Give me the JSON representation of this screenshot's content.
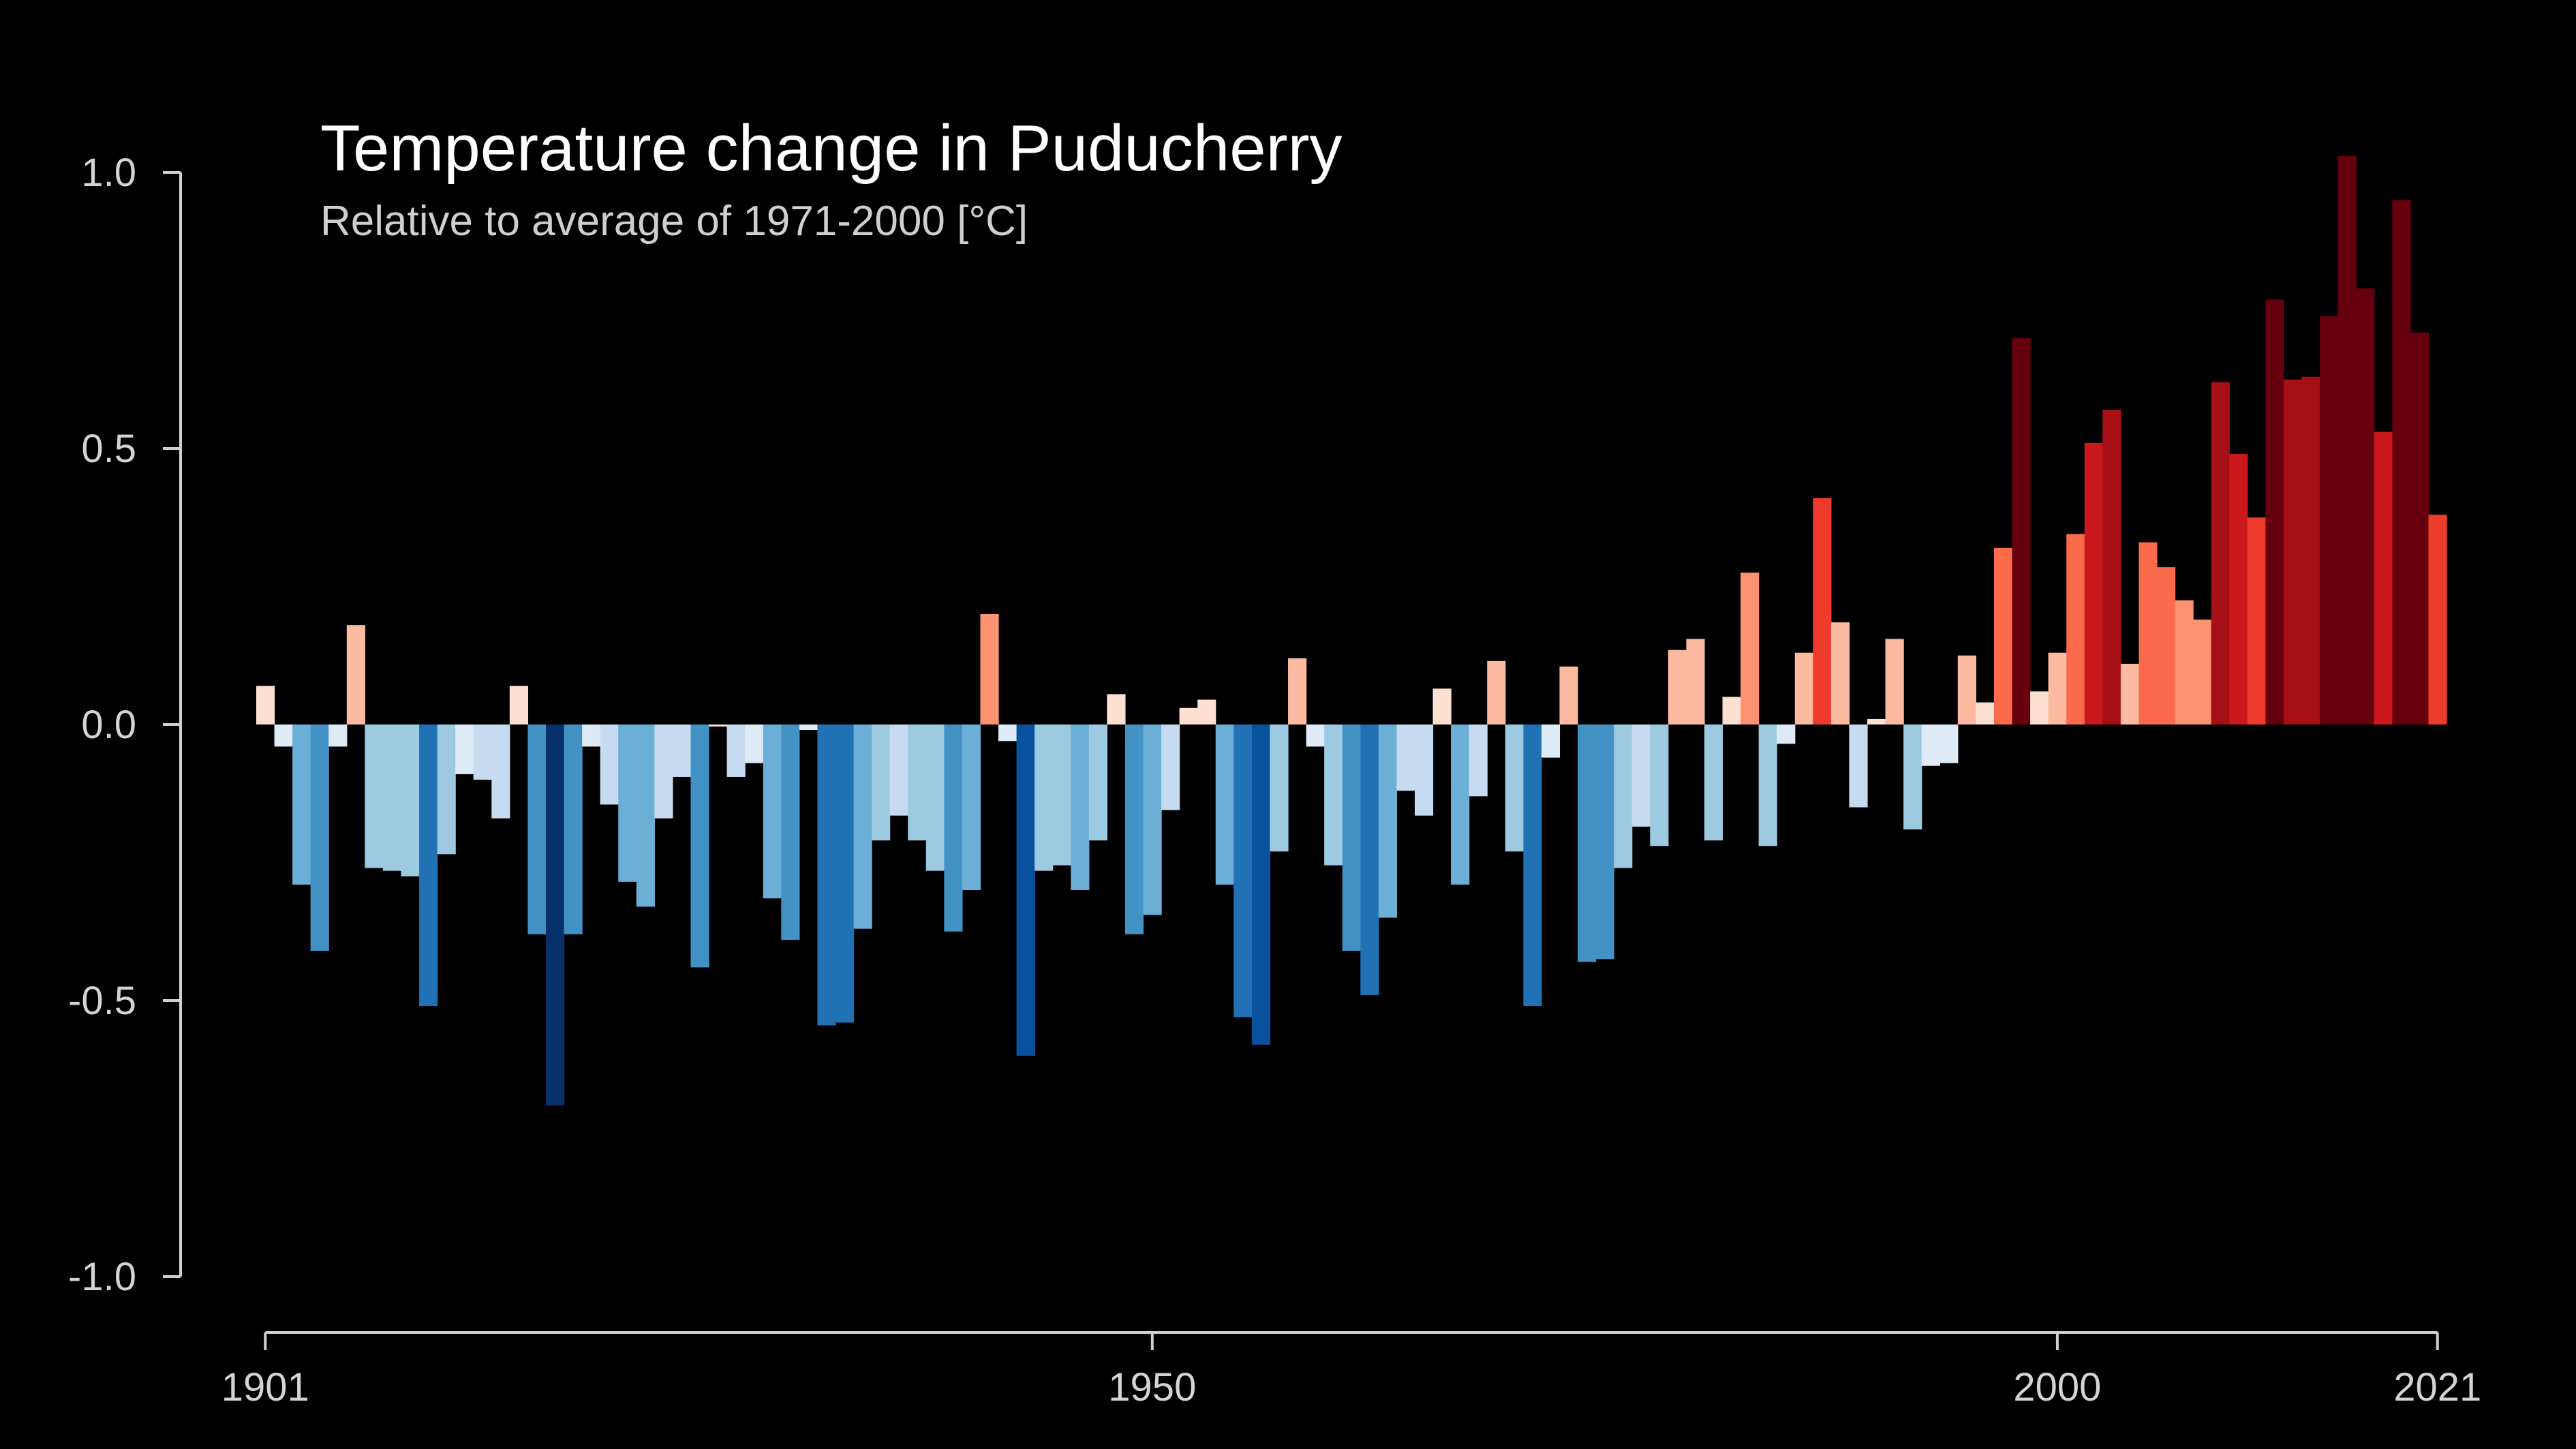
{
  "chart_data": {
    "type": "bar",
    "title": "Temperature change in Puducherry",
    "subtitle": "Relative to average of 1971-2000  [°C]",
    "xlabel": "",
    "ylabel": "",
    "xlim": [
      1901,
      2021
    ],
    "ylim": [
      -1.0,
      1.0
    ],
    "y_ticks": [
      1.0,
      0.5,
      0.0,
      -0.5,
      -1.0
    ],
    "y_tick_labels": [
      "1.0",
      "0.5",
      "0.0",
      "-0.5",
      "-1.0"
    ],
    "x_ticks": [
      1901,
      1950,
      2000,
      2021
    ],
    "x_tick_labels": [
      "1901",
      "1950",
      "2000",
      "2021"
    ],
    "grid": false,
    "legend": "none",
    "background": "#000000",
    "color_scale": {
      "negative": [
        "#deebf7",
        "#c6dbef",
        "#9ecae1",
        "#6baed6",
        "#4292c6",
        "#2171b5",
        "#08519c",
        "#08306b"
      ],
      "positive": [
        "#fee0d2",
        "#fcbba1",
        "#fc9272",
        "#fb6a4a",
        "#ef3b2c",
        "#cb181d",
        "#a50f15",
        "#67000d"
      ],
      "max_abs": 0.75
    },
    "x": [
      1901,
      1902,
      1903,
      1904,
      1905,
      1906,
      1907,
      1908,
      1909,
      1910,
      1911,
      1912,
      1913,
      1914,
      1915,
      1916,
      1917,
      1918,
      1919,
      1920,
      1921,
      1922,
      1923,
      1924,
      1925,
      1926,
      1927,
      1928,
      1929,
      1930,
      1931,
      1932,
      1933,
      1934,
      1935,
      1936,
      1937,
      1938,
      1939,
      1940,
      1941,
      1942,
      1943,
      1944,
      1945,
      1946,
      1947,
      1948,
      1949,
      1950,
      1951,
      1952,
      1953,
      1954,
      1955,
      1956,
      1957,
      1958,
      1959,
      1960,
      1961,
      1962,
      1963,
      1964,
      1965,
      1966,
      1967,
      1968,
      1969,
      1970,
      1971,
      1972,
      1973,
      1974,
      1975,
      1976,
      1977,
      1978,
      1979,
      1980,
      1981,
      1982,
      1983,
      1984,
      1985,
      1986,
      1987,
      1988,
      1989,
      1990,
      1991,
      1992,
      1993,
      1994,
      1995,
      1996,
      1997,
      1998,
      1999,
      2000,
      2001,
      2002,
      2003,
      2004,
      2005,
      2006,
      2007,
      2008,
      2009,
      2010,
      2011,
      2012,
      2013,
      2014,
      2015,
      2016,
      2017,
      2018,
      2019,
      2020,
      2021
    ],
    "values": [
      0.07,
      -0.04,
      -0.29,
      -0.41,
      -0.04,
      0.18,
      -0.26,
      -0.265,
      -0.275,
      -0.51,
      -0.235,
      -0.09,
      -0.1,
      -0.17,
      0.07,
      -0.38,
      -0.69,
      -0.38,
      -0.04,
      -0.145,
      -0.285,
      -0.33,
      -0.17,
      -0.095,
      -0.44,
      0.0,
      -0.095,
      -0.07,
      -0.315,
      -0.39,
      -0.01,
      -0.545,
      -0.54,
      -0.37,
      -0.21,
      -0.165,
      -0.21,
      -0.265,
      -0.375,
      -0.3,
      0.2,
      -0.03,
      -0.6,
      -0.265,
      -0.255,
      -0.3,
      -0.21,
      0.055,
      -0.38,
      -0.345,
      -0.155,
      0.03,
      0.045,
      -0.29,
      -0.53,
      -0.58,
      -0.23,
      0.12,
      -0.04,
      -0.255,
      -0.41,
      -0.49,
      -0.35,
      -0.12,
      -0.165,
      0.065,
      -0.29,
      -0.13,
      0.115,
      -0.23,
      -0.51,
      -0.06,
      0.105,
      -0.43,
      -0.425,
      -0.26,
      -0.185,
      -0.22,
      0.135,
      0.155,
      -0.21,
      0.05,
      0.275,
      -0.22,
      -0.035,
      0.13,
      0.41,
      0.185,
      -0.15,
      0.01,
      0.155,
      -0.19,
      -0.075,
      -0.07,
      0.125,
      0.04,
      0.32,
      0.7,
      0.06,
      0.13,
      0.345,
      0.51,
      0.57,
      0.11,
      0.33,
      0.285,
      0.225,
      0.19,
      0.62,
      0.49,
      0.375,
      0.77,
      0.625,
      0.63,
      0.74,
      1.03,
      0.79,
      0.53,
      0.95,
      0.71,
      0.38
    ]
  }
}
